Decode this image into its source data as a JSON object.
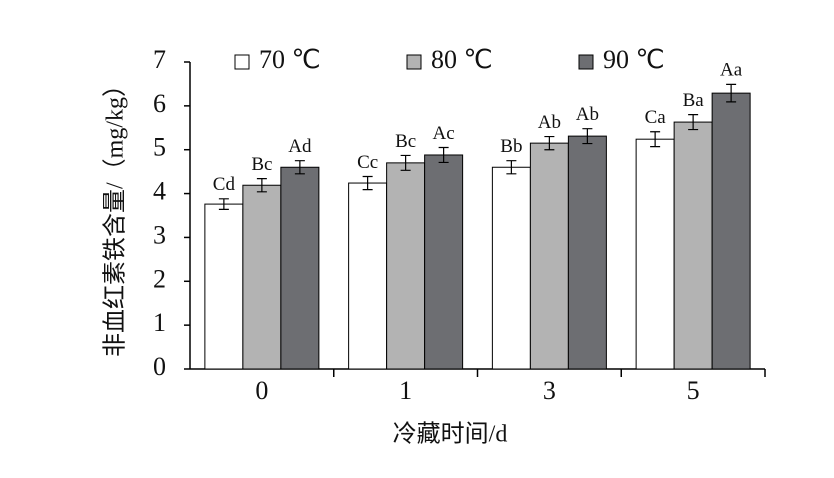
{
  "chart_data": {
    "type": "bar",
    "x_label": "冷藏时间/d",
    "y_label": "非血红素铁含量/（mg/kg）",
    "categories": [
      "0",
      "1",
      "3",
      "5"
    ],
    "series": [
      {
        "name": "70 ℃",
        "color": "#ffffff",
        "values": [
          3.76,
          4.24,
          4.6,
          5.24
        ],
        "errors": [
          0.12,
          0.15,
          0.15,
          0.17
        ],
        "labels": [
          "Cd",
          "Cc",
          "Bb",
          "Ca"
        ]
      },
      {
        "name": "80 ℃",
        "color": "#b3b3b3",
        "values": [
          4.19,
          4.7,
          5.15,
          5.63
        ],
        "errors": [
          0.15,
          0.17,
          0.15,
          0.17
        ],
        "labels": [
          "Bc",
          "Bc",
          "Ab",
          "Ba"
        ]
      },
      {
        "name": "90 ℃",
        "color": "#6d6e72",
        "values": [
          4.6,
          4.88,
          5.31,
          6.29
        ],
        "errors": [
          0.15,
          0.17,
          0.17,
          0.2
        ],
        "labels": [
          "Ad",
          "Ac",
          "Ab",
          "Aa"
        ]
      }
    ],
    "ylim": [
      0,
      7
    ],
    "yticks": [
      0,
      1,
      2,
      3,
      4,
      5,
      6,
      7
    ]
  }
}
